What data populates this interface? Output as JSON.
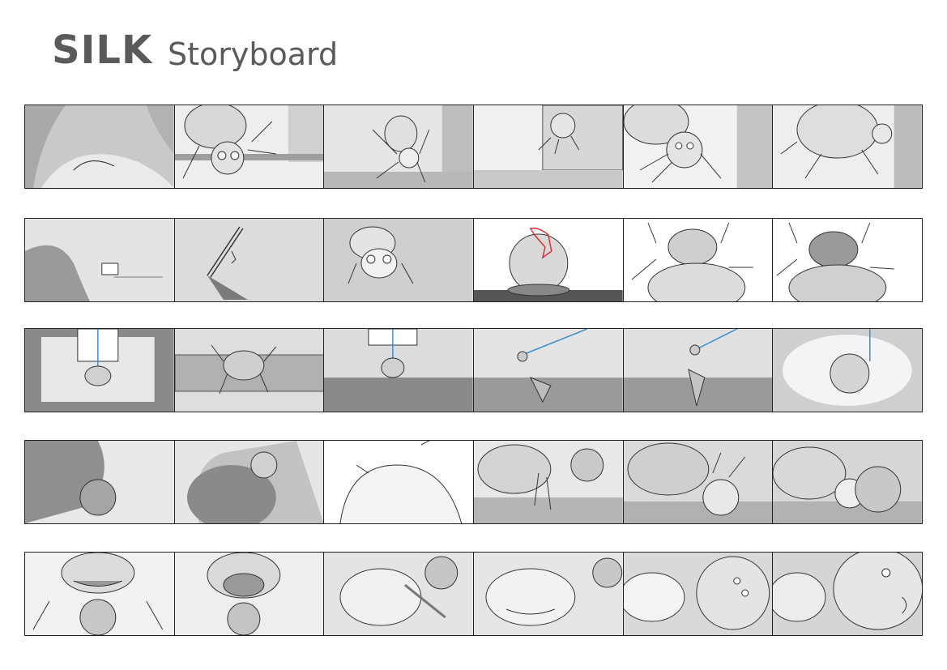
{
  "header": {
    "title": "SILK",
    "subtitle": "Storyboard"
  },
  "storyboard": {
    "rows": [
      {
        "panels": [
          "forest-closeup",
          "spider-on-ledge",
          "spider-hanging",
          "spider-leaving",
          "spider-face",
          "spider-back"
        ]
      },
      {
        "panels": [
          "spider-tiny-far",
          "silk-thread",
          "spider-front",
          "spider-top-arrow",
          "spider-legs-up",
          "spider-legs-up-2"
        ]
      },
      {
        "panels": [
          "window-speedlines",
          "spider-on-bench",
          "window-floor",
          "bird-sees-spider",
          "bird-reaches",
          "spider-dangling"
        ]
      },
      {
        "panels": [
          "frog-shadow",
          "spider-on-bulb",
          "frog-head-top",
          "frog-eyes",
          "frog-spider-close",
          "frog-spider-close-2"
        ]
      },
      {
        "panels": [
          "frog-front",
          "frog-mouth-open",
          "frog-grab",
          "frog-smile",
          "frog-tongue",
          "spider-angry"
        ]
      }
    ],
    "colors": {
      "border": "#222222",
      "light": "#eeeeee",
      "mid": "#bdbdbd",
      "dark": "#8a8a8a",
      "arrow": "#e03030",
      "thread": "#3b8fd4"
    }
  }
}
